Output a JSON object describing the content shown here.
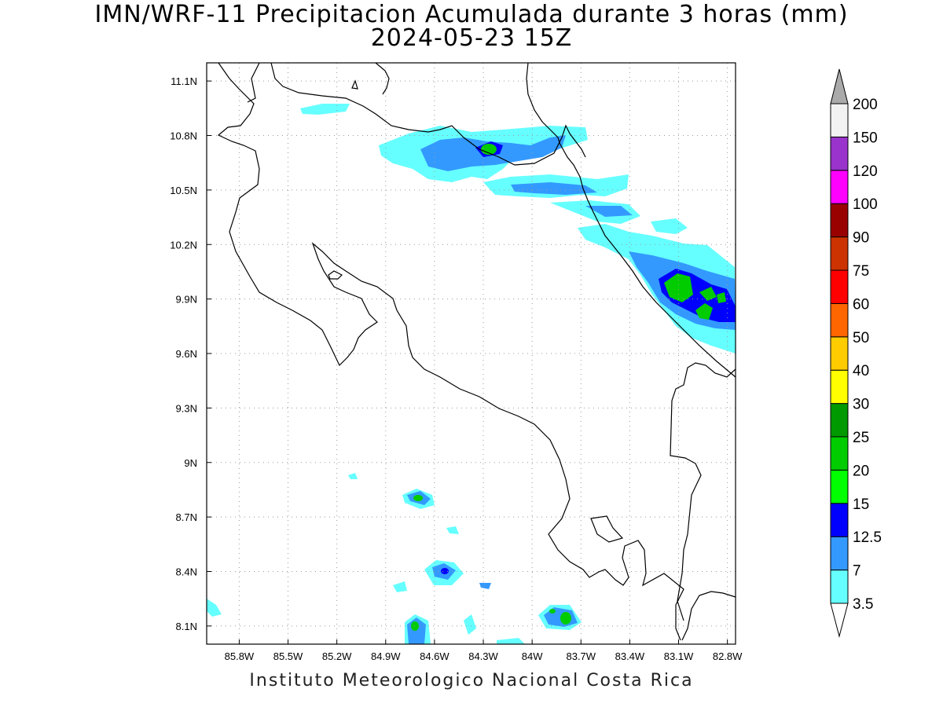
{
  "title_line1": "IMN/WRF-11 Precipitacion Acumulada durante 3 horas (mm)",
  "title_line2": "2024-05-23 15Z",
  "footer": "Instituto Meteorologico Nacional Costa Rica",
  "map": {
    "lon_range": [
      -86.0,
      -82.75
    ],
    "lat_range": [
      8.0,
      11.2
    ],
    "x_ticks": [
      "85.8W",
      "85.5W",
      "85.2W",
      "84.9W",
      "84.6W",
      "84.3W",
      "84W",
      "83.7W",
      "83.4W",
      "83.1W",
      "82.8W"
    ],
    "y_ticks": [
      "11.1N",
      "10.8N",
      "10.5N",
      "10.2N",
      "9.9N",
      "9.6N",
      "9.3N",
      "9N",
      "8.7N",
      "8.4N",
      "8.1N"
    ]
  },
  "colorbar": {
    "levels": [
      "3.5",
      "7",
      "12.5",
      "15",
      "20",
      "25",
      "30",
      "40",
      "50",
      "60",
      "75",
      "90",
      "100",
      "120",
      "150",
      "200"
    ],
    "colors": [
      "#66ffff",
      "#3399ff",
      "#0000ff",
      "#00ff00",
      "#00cc00",
      "#009900",
      "#ffff00",
      "#ffcc00",
      "#ff6600",
      "#ff0000",
      "#cc3300",
      "#990000",
      "#ff00ff",
      "#9933cc",
      "#f2f2f2"
    ],
    "top_arrow_color": "#aaaaaa",
    "bottom_arrow_color": "#ffffff"
  },
  "precip_colors": {
    "light": "#66ffff",
    "mid": "#3399ff",
    "heavy": "#0000ff",
    "green1": "#00ff00",
    "green2": "#00cc00"
  }
}
